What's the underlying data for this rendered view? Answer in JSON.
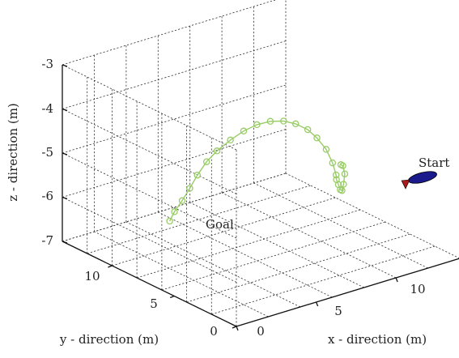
{
  "chart_data": {
    "type": "line3d",
    "xlabel": "x - direction (m)",
    "ylabel": "y - direction (m)",
    "zlabel": "z - direction (m)",
    "x_ticks": [
      "0",
      "5",
      "10"
    ],
    "y_ticks": [
      "0",
      "5",
      "10"
    ],
    "z_ticks": [
      "-3",
      "-4",
      "-5",
      "-6",
      "-7"
    ],
    "xlim": [
      0,
      14
    ],
    "ylim": [
      0,
      14
    ],
    "zlim": [
      -7,
      -3
    ],
    "grid": true,
    "annotations": {
      "start": "Start",
      "goal": "Goal"
    },
    "colors": {
      "path": "#99cc66",
      "vehicle_body": "#1a1a8c",
      "vehicle_fin": "#aa1a1a"
    },
    "series": [
      {
        "points": [
          [
            12.0,
            7.0,
            -5.62
          ],
          [
            12.2,
            7.1,
            -5.68
          ],
          [
            12.4,
            7.2,
            -5.9
          ],
          [
            12.4,
            7.3,
            -6.15
          ],
          [
            12.3,
            7.3,
            -6.28
          ],
          [
            12.2,
            7.3,
            -6.25
          ],
          [
            12.0,
            7.2,
            -6.1
          ],
          [
            11.8,
            7.1,
            -5.95
          ],
          [
            11.7,
            7.0,
            -5.82
          ],
          [
            11.4,
            6.9,
            -5.5
          ],
          [
            11.0,
            6.9,
            -5.15
          ],
          [
            10.5,
            7.0,
            -4.85
          ],
          [
            10.0,
            7.1,
            -4.62
          ],
          [
            9.4,
            7.3,
            -4.45
          ],
          [
            8.8,
            7.5,
            -4.35
          ],
          [
            8.2,
            7.8,
            -4.33
          ],
          [
            7.6,
            8.1,
            -4.38
          ],
          [
            7.0,
            8.4,
            -4.5
          ],
          [
            6.4,
            8.7,
            -4.68
          ],
          [
            5.8,
            9.0,
            -4.9
          ],
          [
            5.3,
            9.2,
            -5.12
          ],
          [
            4.8,
            9.3,
            -5.38
          ],
          [
            4.4,
            9.4,
            -5.65
          ],
          [
            4.0,
            9.5,
            -5.9
          ],
          [
            3.6,
            9.6,
            -6.12
          ],
          [
            3.3,
            9.6,
            -6.3
          ]
        ]
      }
    ]
  }
}
